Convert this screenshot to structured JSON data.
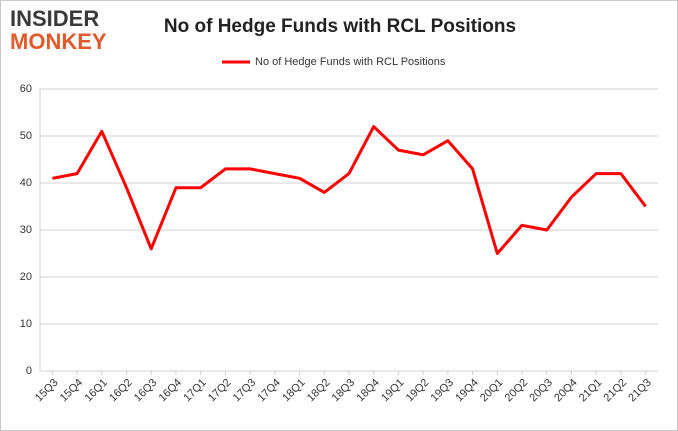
{
  "logo": {
    "top": "INSIDER",
    "bottom": "MONKEY"
  },
  "chart_data": {
    "type": "line",
    "title": "No of Hedge Funds with RCL Positions",
    "categories": [
      "15Q3",
      "15Q4",
      "16Q1",
      "16Q2",
      "16Q3",
      "16Q4",
      "17Q1",
      "17Q2",
      "17Q3",
      "17Q4",
      "18Q1",
      "18Q2",
      "18Q3",
      "18Q4",
      "19Q1",
      "19Q2",
      "19Q3",
      "19Q4",
      "20Q1",
      "20Q2",
      "20Q3",
      "20Q4",
      "21Q1",
      "21Q2",
      "21Q3"
    ],
    "series": [
      {
        "name": "No of Hedge Funds with RCL Positions",
        "color": "#ff0000",
        "values": [
          41,
          42,
          51,
          39,
          26,
          39,
          39,
          43,
          43,
          42,
          41,
          38,
          42,
          52,
          47,
          46,
          49,
          43,
          25,
          31,
          30,
          37,
          42,
          42,
          35
        ]
      }
    ],
    "ylim": [
      0,
      60
    ],
    "yticks": [
      0,
      10,
      20,
      30,
      40,
      50,
      60
    ],
    "grid": true,
    "legend": "top"
  }
}
